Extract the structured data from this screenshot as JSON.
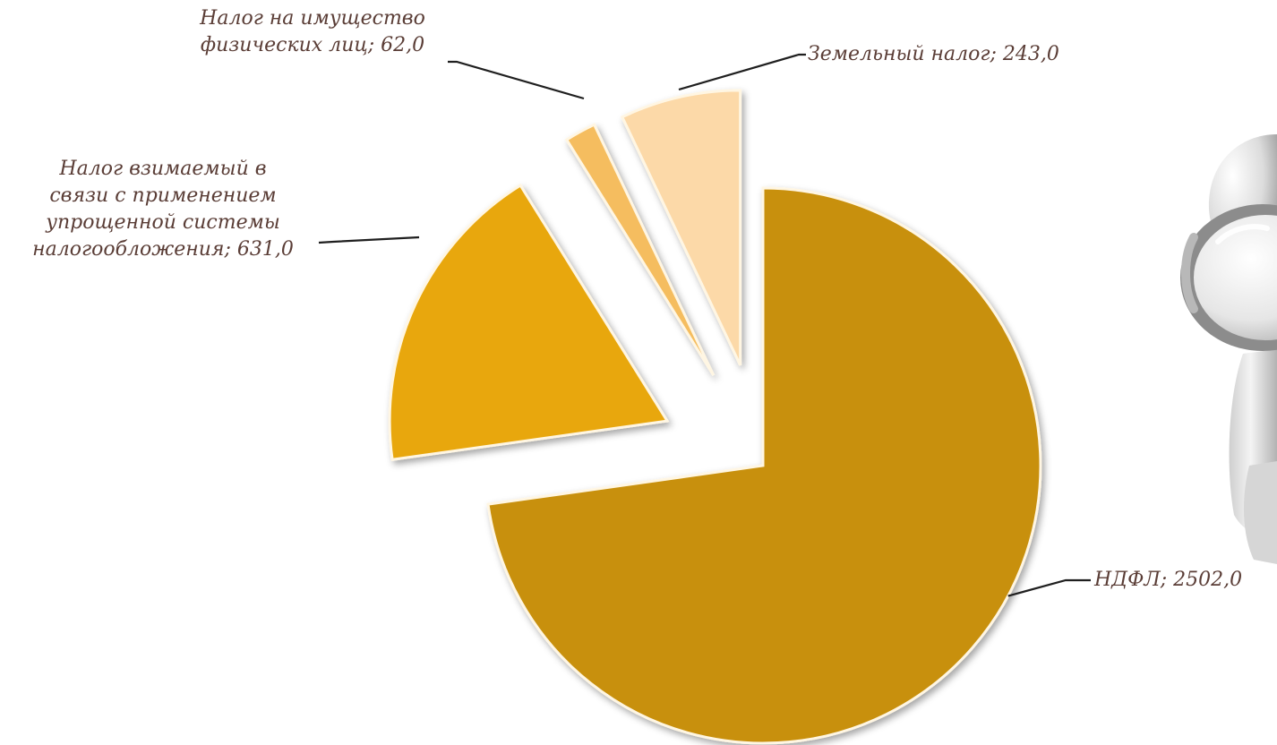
{
  "chart_data": {
    "type": "pie",
    "exploded": true,
    "labels_show": "category; value",
    "slices": [
      {
        "label": "НДФЛ",
        "value": 2502.0,
        "value_text": "2502,0",
        "color": "#c8900a"
      },
      {
        "label": "Налог взимаемый в связи с применением упрощенной системы налогообложения",
        "value": 631.0,
        "value_text": "631,0",
        "color": "#e8a70d"
      },
      {
        "label": "Налог на имущество физических лиц",
        "value": 62.0,
        "value_text": "62,0",
        "color": "#f5bd5e"
      },
      {
        "label": "Земельный налог",
        "value": 243.0,
        "value_text": "243,0",
        "color": "#fcd9a8"
      }
    ]
  },
  "labels": {
    "ndfl": "НДФЛ; 2502,0",
    "usn_line1": "Налог взимаемый в",
    "usn_line2": "связи с применением",
    "usn_line3": "упрощенной системы",
    "usn_line4": "налогообложения; 631,0",
    "property_line1": "Налог на имущество",
    "property_line2": "физических лиц; 62,0",
    "land": "Земельный налог; 243,0"
  },
  "illustration": {
    "name": "figure-with-magnifying-glass",
    "colors": {
      "body": "#e4e4e4",
      "shade": "#a9a9a9",
      "rim": "#8c8c8c"
    }
  }
}
